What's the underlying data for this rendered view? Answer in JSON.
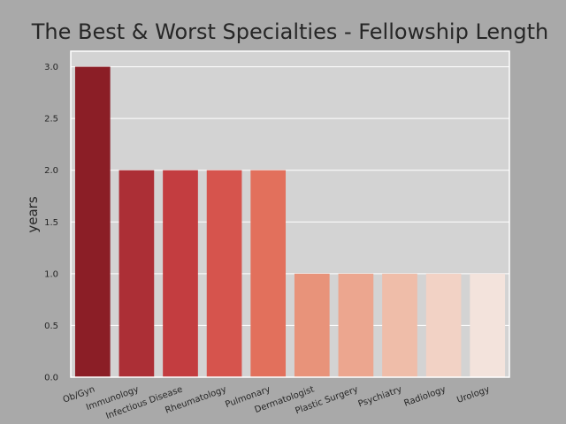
{
  "chart_data": {
    "type": "bar",
    "title": "The Best & Worst Specialties - Fellowship Length",
    "xlabel": "",
    "ylabel": "years",
    "categories": [
      "Ob/Gyn",
      "Immunology",
      "Infectious Disease",
      "Rheumatology",
      "Pulmonary",
      "Dermatologist",
      "Plastic Surgery",
      "Psychiatry",
      "Radiology",
      "Urology"
    ],
    "values": [
      3.0,
      2.0,
      2.0,
      2.0,
      2.0,
      1.0,
      1.0,
      1.0,
      1.0,
      1.0
    ],
    "ylim": [
      0,
      3.15
    ],
    "yticks": [
      "0.0",
      "0.5",
      "1.0",
      "1.5",
      "2.0",
      "2.5",
      "3.0"
    ],
    "grid": true,
    "colors": {
      "figure_background": "#a9a9a9",
      "plot_background": "#d3d3d3",
      "grid": "#ffffff",
      "bars": [
        "#8b1e26",
        "#ac2f36",
        "#c33d40",
        "#d6544d",
        "#e2705c",
        "#e8937a",
        "#eca68f",
        "#efbda9",
        "#f2d2c5",
        "#f3e3dc"
      ]
    }
  }
}
